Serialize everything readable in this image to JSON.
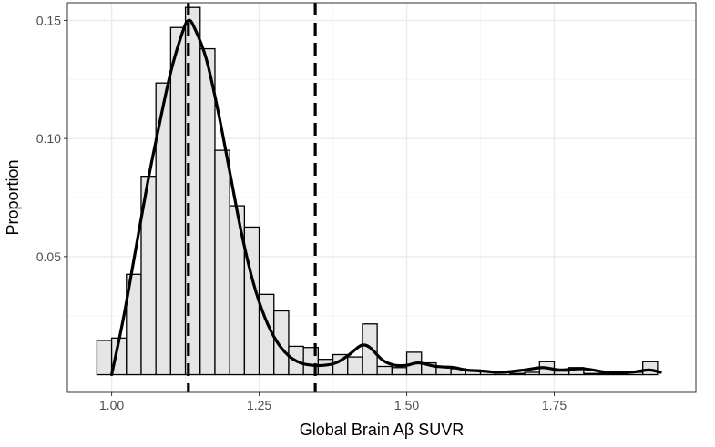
{
  "chart_data": {
    "type": "bar",
    "xlabel": "Global Brain Aβ SUVR",
    "ylabel": "Proportion",
    "xlim": [
      0.925,
      1.99
    ],
    "ylim": [
      -0.0075,
      0.1575
    ],
    "grid": true,
    "x_ticks": [
      1.0,
      1.25,
      1.5,
      1.75
    ],
    "x_tick_labels": [
      "1.00",
      "1.25",
      "1.50",
      "1.75"
    ],
    "y_ticks": [
      0.05,
      0.1,
      0.15
    ],
    "y_tick_labels": [
      "0.05",
      "0.10",
      "0.15"
    ],
    "bin_width": 0.025,
    "bins": [
      {
        "x": 0.9875,
        "y": 0.0145
      },
      {
        "x": 1.0125,
        "y": 0.0155
      },
      {
        "x": 1.0375,
        "y": 0.0425
      },
      {
        "x": 1.0625,
        "y": 0.084
      },
      {
        "x": 1.0875,
        "y": 0.1235
      },
      {
        "x": 1.1125,
        "y": 0.147
      },
      {
        "x": 1.1375,
        "y": 0.1555
      },
      {
        "x": 1.1625,
        "y": 0.138
      },
      {
        "x": 1.1875,
        "y": 0.095
      },
      {
        "x": 1.2125,
        "y": 0.0715
      },
      {
        "x": 1.2375,
        "y": 0.0625
      },
      {
        "x": 1.2625,
        "y": 0.034
      },
      {
        "x": 1.2875,
        "y": 0.027
      },
      {
        "x": 1.3125,
        "y": 0.012
      },
      {
        "x": 1.3375,
        "y": 0.0115
      },
      {
        "x": 1.3625,
        "y": 0.0065
      },
      {
        "x": 1.3875,
        "y": 0.0085
      },
      {
        "x": 1.4125,
        "y": 0.0075
      },
      {
        "x": 1.4375,
        "y": 0.0215
      },
      {
        "x": 1.4625,
        "y": 0.0035
      },
      {
        "x": 1.4875,
        "y": 0.003
      },
      {
        "x": 1.5125,
        "y": 0.0095
      },
      {
        "x": 1.5375,
        "y": 0.005
      },
      {
        "x": 1.5625,
        "y": 0.0035
      },
      {
        "x": 1.5875,
        "y": 0.0025
      },
      {
        "x": 1.6125,
        "y": 0.002
      },
      {
        "x": 1.6375,
        "y": 0.0015
      },
      {
        "x": 1.6625,
        "y": 0.001
      },
      {
        "x": 1.6875,
        "y": 0.0005
      },
      {
        "x": 1.7125,
        "y": 0.001
      },
      {
        "x": 1.7375,
        "y": 0.0055
      },
      {
        "x": 1.7625,
        "y": 0.0015
      },
      {
        "x": 1.7875,
        "y": 0.003
      },
      {
        "x": 1.8125,
        "y": 0.0005
      },
      {
        "x": 1.8375,
        "y": 0.0005
      },
      {
        "x": 1.8625,
        "y": 0.0005
      },
      {
        "x": 1.8875,
        "y": 0.001
      },
      {
        "x": 1.9125,
        "y": 0.0055
      }
    ],
    "density_curve": {
      "x": [
        1.0,
        1.02,
        1.04,
        1.06,
        1.08,
        1.1,
        1.12,
        1.13,
        1.14,
        1.16,
        1.18,
        1.2,
        1.22,
        1.24,
        1.26,
        1.28,
        1.3,
        1.32,
        1.34,
        1.36,
        1.38,
        1.4,
        1.42,
        1.43,
        1.44,
        1.46,
        1.48,
        1.5,
        1.52,
        1.55,
        1.58,
        1.6,
        1.63,
        1.66,
        1.7,
        1.73,
        1.76,
        1.8,
        1.84,
        1.88,
        1.91,
        1.93
      ],
      "y": [
        0.0,
        0.024,
        0.052,
        0.08,
        0.105,
        0.128,
        0.145,
        0.15,
        0.147,
        0.134,
        0.112,
        0.086,
        0.06,
        0.039,
        0.024,
        0.014,
        0.008,
        0.005,
        0.004,
        0.004,
        0.005,
        0.008,
        0.012,
        0.0125,
        0.011,
        0.006,
        0.004,
        0.004,
        0.005,
        0.0035,
        0.003,
        0.002,
        0.0015,
        0.001,
        0.002,
        0.003,
        0.002,
        0.0025,
        0.001,
        0.001,
        0.002,
        0.001
      ]
    },
    "vlines": [
      {
        "x": 1.13,
        "style": "dashed"
      },
      {
        "x": 1.345,
        "style": "dashed"
      }
    ],
    "colors": {
      "bar_fill": "#e5e5e5",
      "bar_stroke": "#000000",
      "curve": "#000000",
      "grid_major": "#ebebeb",
      "grid_minor": "#f5f5f5",
      "panel_border": "#333333"
    }
  }
}
